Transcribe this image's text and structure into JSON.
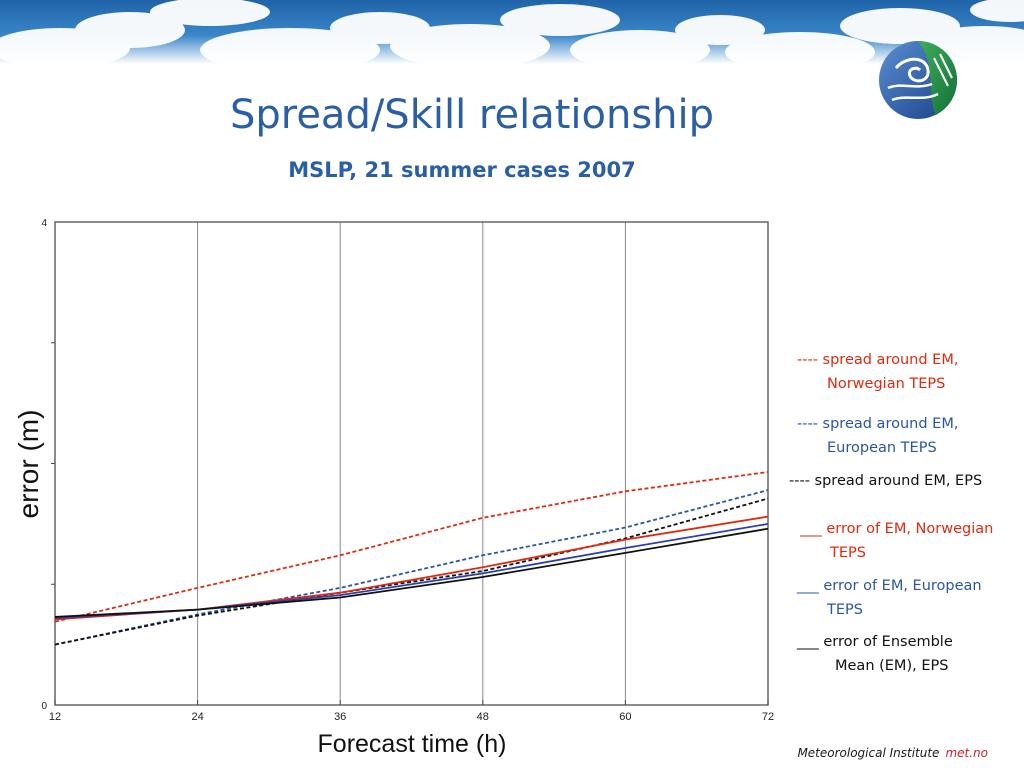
{
  "slide": {
    "title": "Spread/Skill relationship",
    "subtitle": "MSLP, 21 summer cases 2007",
    "footer_org": "Meteorological Institute",
    "footer_brand": "met.no"
  },
  "legend": [
    {
      "line1": "---- spread around EM,",
      "line2": "Norwegian TEPS",
      "color": "#e02a10"
    },
    {
      "line1": "---- spread around EM,",
      "line2": "European TEPS",
      "color": "#2a55a6"
    },
    {
      "line1": "---- spread around EM, EPS",
      "line2": "",
      "color": "#111111"
    },
    {
      "line1": "___ error of EM, Norwegian",
      "line2": "TEPS",
      "color": "#e02a10"
    },
    {
      "line1": "___ error of EM, European",
      "line2": "TEPS",
      "color": "#2a55a6"
    },
    {
      "line1": "___ error of Ensemble",
      "line2": "Mean (EM), EPS",
      "color": "#111111"
    }
  ],
  "chart_data": {
    "type": "line",
    "xlabel": "Forecast time (h)",
    "ylabel": "error (m)",
    "xlim": [
      12,
      72
    ],
    "ylim": [
      0,
      4
    ],
    "x_ticks": [
      12,
      24,
      36,
      48,
      60,
      72
    ],
    "y_ticks": [
      0,
      4
    ],
    "grid": "vertical",
    "x": [
      12,
      24,
      36,
      48,
      60,
      72
    ],
    "series": [
      {
        "values": [
          0.69,
          0.97,
          1.24,
          1.55,
          1.77,
          1.93
        ],
        "color": "#e02a10",
        "style": "dashed"
      },
      {
        "values": [
          0.5,
          0.75,
          0.97,
          1.24,
          1.47,
          1.78
        ],
        "color": "#2a55a6",
        "style": "dashed"
      },
      {
        "values": [
          0.5,
          0.74,
          0.93,
          1.11,
          1.38,
          1.71
        ],
        "color": "#111111",
        "style": "dashed"
      },
      {
        "values": [
          0.71,
          0.79,
          0.93,
          1.14,
          1.37,
          1.56
        ],
        "color": "#e02a10",
        "style": "solid"
      },
      {
        "values": [
          0.72,
          0.79,
          0.91,
          1.09,
          1.3,
          1.5
        ],
        "color": "#2a3fb0",
        "style": "solid"
      },
      {
        "values": [
          0.73,
          0.79,
          0.89,
          1.06,
          1.26,
          1.46
        ],
        "color": "#111111",
        "style": "solid"
      }
    ]
  }
}
